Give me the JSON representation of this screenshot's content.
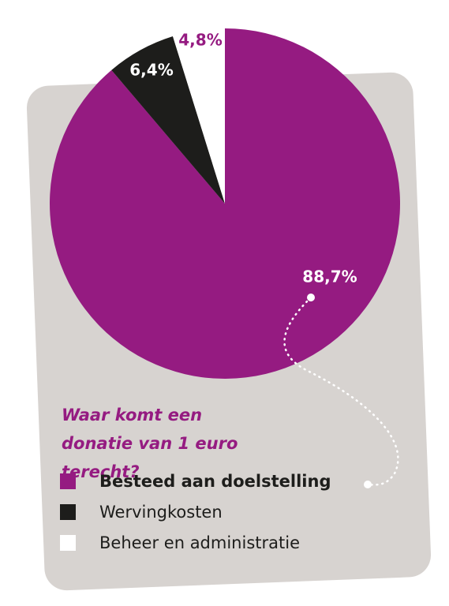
{
  "chart_data": {
    "type": "pie",
    "title": "Waar komt een donatie van 1 euro terecht?",
    "series": [
      {
        "name": "Besteed aan doelstelling",
        "color": "#951b81",
        "values": [
          88.7
        ],
        "value_labels": [
          "88,7%"
        ]
      },
      {
        "name": "Wervingkosten",
        "color": "#1d1d1b",
        "values": [
          6.4
        ],
        "value_labels": [
          "6,4%"
        ]
      },
      {
        "name": "Beheer en administratie",
        "color": "#ffffff",
        "values": [
          4.8
        ],
        "value_labels": [
          "4,8%"
        ]
      }
    ]
  }
}
